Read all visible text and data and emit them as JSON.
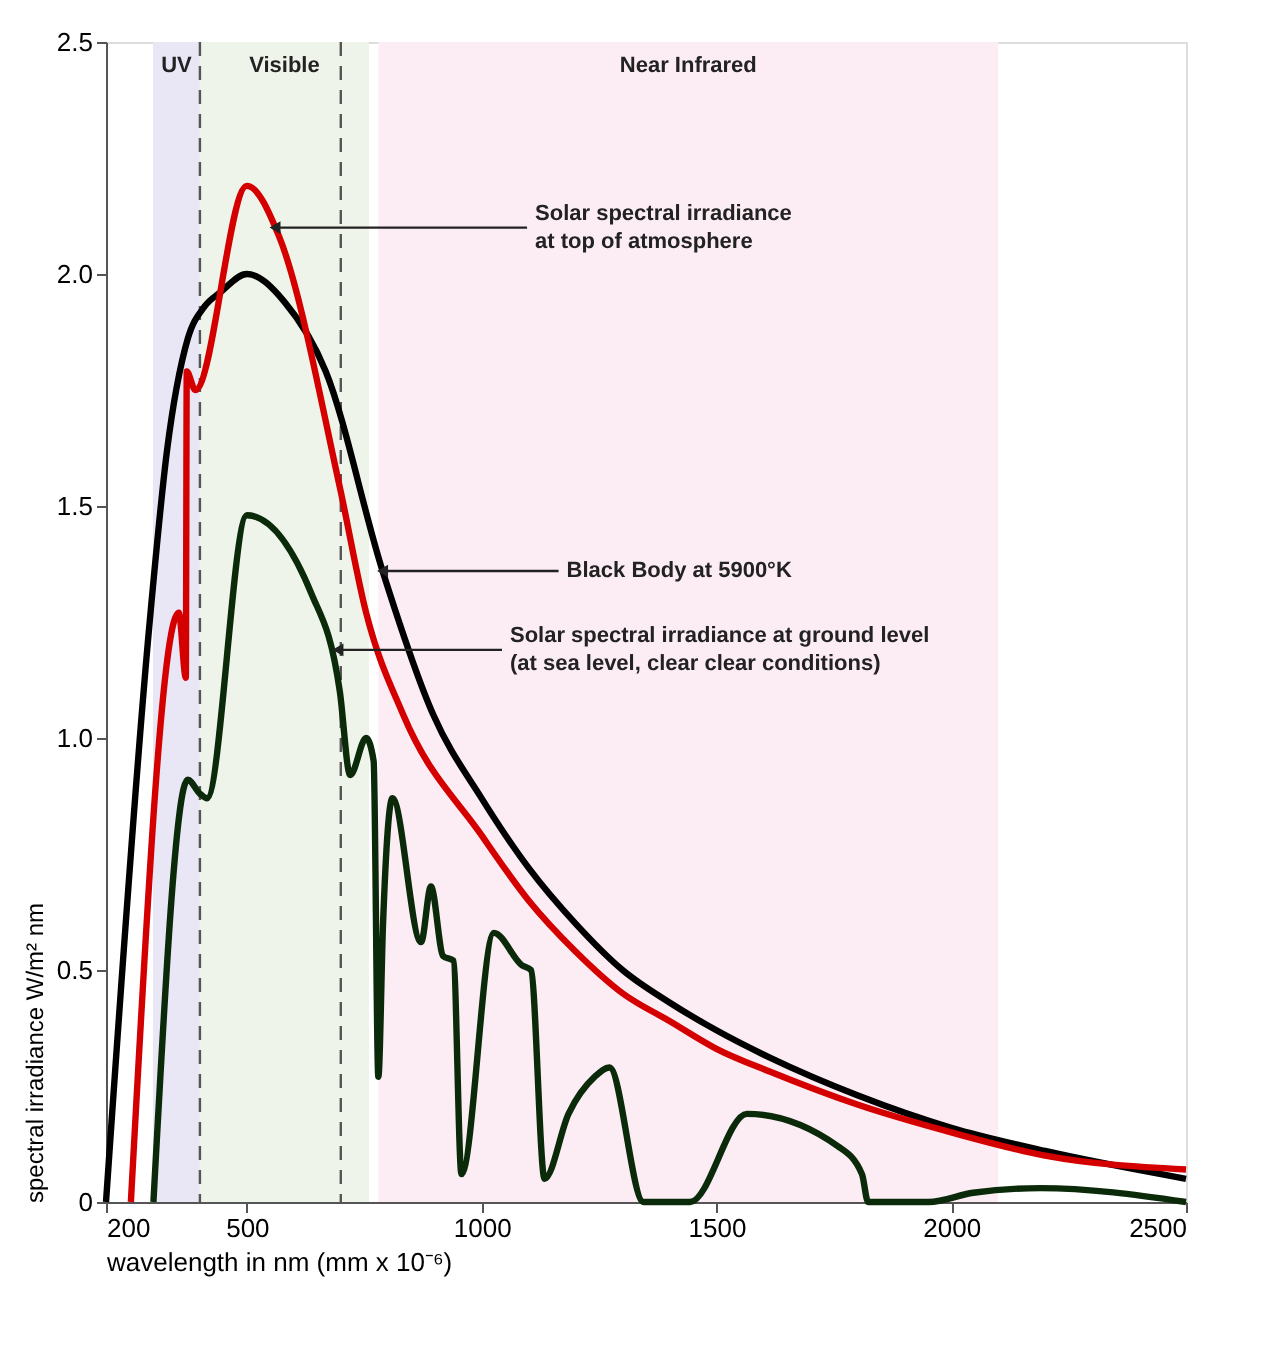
{
  "chart_data": {
    "type": "line",
    "xlabel": "wavelength in nm (mm x 10⁻⁶)",
    "ylabel": "spectral irradiance W/m² nm",
    "xlim": [
      200,
      2500
    ],
    "xticks": [
      200,
      500,
      1000,
      1500,
      2000,
      2500
    ],
    "ylim": [
      0,
      2.5
    ],
    "yticks": [
      0,
      {
        "value": 0.5,
        "label": "0.5"
      },
      {
        "value": 1,
        "label": "1.0"
      },
      {
        "value": 1.5,
        "label": "1.5"
      },
      {
        "value": 2,
        "label": "2.0"
      },
      {
        "value": 2.5,
        "label": "2.5"
      }
    ],
    "grid": false,
    "marker": "none",
    "line_style": "solid",
    "series": [
      {
        "color": "#000000",
        "x": [
          200,
          293,
          330,
          374,
          410,
          443,
          500,
          580,
          668,
          789,
          897,
          1000,
          1100,
          1200,
          1300,
          1400,
          1500,
          1616,
          1800,
          2000,
          2200,
          2500
        ],
        "values": [
          0,
          1.25,
          1.62,
          1.86,
          1.93,
          1.96,
          2.0,
          1.94,
          1.79,
          1.36,
          1.05,
          0.87,
          0.72,
          0.6,
          0.5,
          0.43,
          0.37,
          0.31,
          0.23,
          0.16,
          0.11,
          0.05
        ]
      },
      {
        "color": "#d40000",
        "x": [
          253,
          355,
          370,
          372,
          390,
          500,
          569,
          698,
          754,
          833,
          1000,
          1100,
          1200,
          1300,
          1400,
          1500,
          1616,
          1800,
          2000,
          2200,
          2500
        ],
        "values": [
          0,
          1.27,
          1.13,
          1.79,
          1.75,
          2.19,
          2.08,
          1.54,
          1.27,
          1.05,
          0.79,
          0.65,
          0.54,
          0.45,
          0.39,
          0.33,
          0.28,
          0.21,
          0.15,
          0.1,
          0.07
        ]
      },
      {
        "color": "#0a2a0a",
        "x": [
          301,
          374,
          400,
          415,
          500,
          638,
          698,
          720,
          754,
          770,
          780,
          790,
          810,
          871,
          892,
          918,
          940,
          957,
          1026,
          1086,
          1105,
          1134,
          1185,
          1241,
          1272,
          1345,
          1444,
          1565,
          1759,
          1810,
          1823,
          1952,
          2047,
          2190,
          2500
        ],
        "values": [
          0,
          0.91,
          0.88,
          0.87,
          1.48,
          1.31,
          1.1,
          0.92,
          1.0,
          0.95,
          0.27,
          0.6,
          0.87,
          0.56,
          0.68,
          0.53,
          0.52,
          0.06,
          0.58,
          0.51,
          0.5,
          0.05,
          0.19,
          0.27,
          0.29,
          0,
          0,
          0.19,
          0.12,
          0.06,
          0,
          0,
          0.02,
          0.03,
          0
        ]
      }
    ],
    "bands": [
      {
        "axis": "x",
        "from": 300,
        "to": 400,
        "label": "UV",
        "color": "#e9e6f5"
      },
      {
        "axis": "x",
        "from": 400,
        "to": 760,
        "label": "Visible",
        "color": "#eff4ea"
      },
      {
        "axis": "x",
        "from": 780,
        "to": 2100,
        "label": "Near Infrared",
        "color": "#fcecf4"
      }
    ],
    "ref_lines": [
      {
        "axis": "x",
        "value": 400,
        "color": "#555555",
        "line_style": "dashed"
      },
      {
        "axis": "x",
        "value": 700,
        "color": "#555555",
        "line_style": "dashed"
      }
    ],
    "annotations": [
      {
        "text": "Solar spectral irradiance\nat top of atmosphere",
        "x": 560,
        "y": 2.1
      },
      {
        "text": "Black Body at 5900°K",
        "x": 789,
        "y": 1.36
      },
      {
        "text": "Solar spectral irradiance at ground level\n(at sea level, clear clear conditions)",
        "x": 694,
        "y": 1.19
      }
    ]
  }
}
